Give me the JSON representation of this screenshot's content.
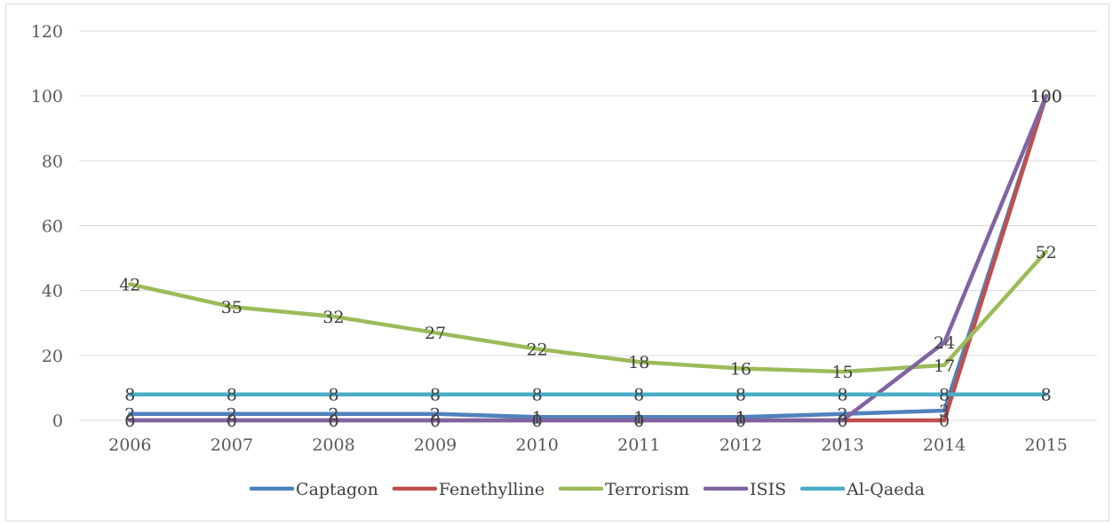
{
  "chart_data": {
    "type": "line",
    "title": "",
    "xlabel": "",
    "ylabel": "",
    "x": [
      "2006",
      "2007",
      "2008",
      "2009",
      "2010",
      "2011",
      "2012",
      "2013",
      "2014",
      "2015"
    ],
    "ylim": [
      0,
      120
    ],
    "yticks": [
      "0",
      "20",
      "40",
      "60",
      "80",
      "100",
      "120"
    ],
    "grid": true,
    "legend_position": "bottom",
    "series": [
      {
        "name": "Captagon",
        "color": "#4f81bd",
        "values": [
          2,
          2,
          2,
          2,
          1,
          1,
          1,
          2,
          3,
          100
        ]
      },
      {
        "name": "Fenethylline",
        "color": "#c0504d",
        "values": [
          0,
          0,
          0,
          0,
          0,
          0,
          0,
          0,
          0,
          100
        ]
      },
      {
        "name": "Terrorism",
        "color": "#9bbb59",
        "values": [
          42,
          35,
          32,
          27,
          22,
          18,
          16,
          15,
          17,
          52
        ]
      },
      {
        "name": "ISIS",
        "color": "#8064a2",
        "values": [
          0,
          0,
          0,
          0,
          0,
          0,
          0,
          0,
          24,
          100
        ]
      },
      {
        "name": "Al-Qaeda",
        "color": "#4bacc6",
        "values": [
          8,
          8,
          8,
          8,
          8,
          8,
          8,
          8,
          8,
          8
        ]
      }
    ]
  }
}
